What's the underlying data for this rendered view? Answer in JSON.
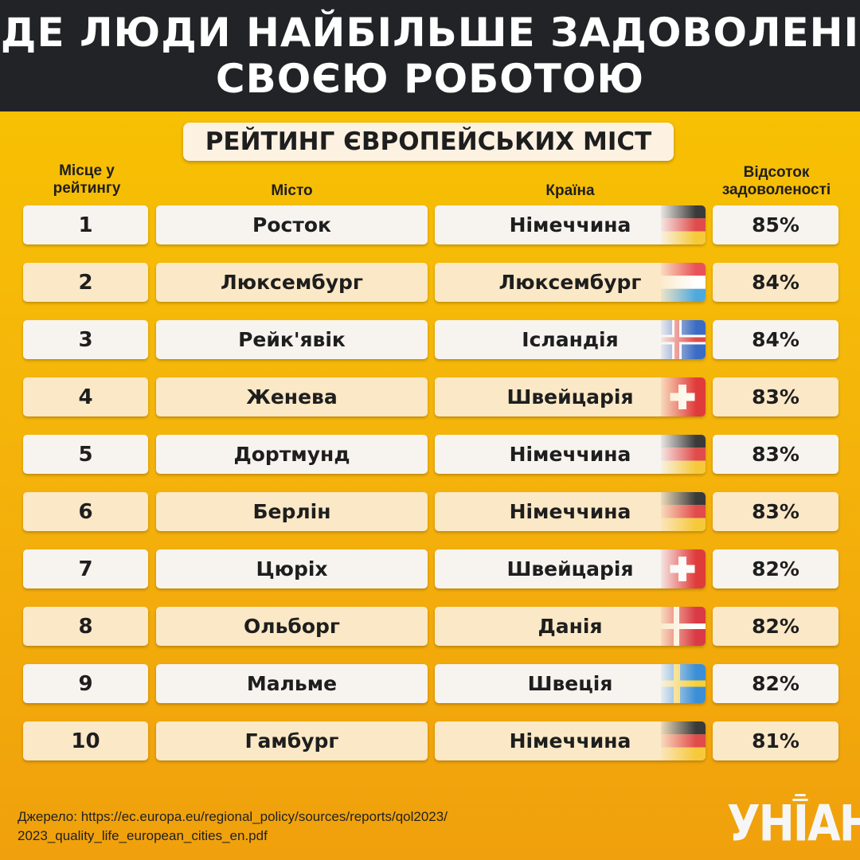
{
  "header": {
    "title_line1": "ДЕ ЛЮДИ НАЙБІЛЬШЕ ЗАДОВОЛЕНІ",
    "title_line2": "СВОЄЮ РОБОТОЮ"
  },
  "subtitle": "РЕЙТИНГ ЄВРОПЕЙСЬКИХ МІСТ",
  "columns": {
    "rank_line1": "Місце у",
    "rank_line2": "рейтингу",
    "city": "Місто",
    "country": "Країна",
    "pct_line1": "Відсоток",
    "pct_line2": "задоволеності"
  },
  "rows": [
    {
      "rank": "1",
      "city": "Росток",
      "country": "Німеччина",
      "pct": "85%",
      "flag": "germany-flag-icon"
    },
    {
      "rank": "2",
      "city": "Люксембург",
      "country": "Люксембург",
      "pct": "84%",
      "flag": "luxembourg-flag-icon"
    },
    {
      "rank": "3",
      "city": "Рейк'явік",
      "country": "Ісландія",
      "pct": "84%",
      "flag": "iceland-flag-icon"
    },
    {
      "rank": "4",
      "city": "Женева",
      "country": "Швейцарія",
      "pct": "83%",
      "flag": "switzerland-flag-icon"
    },
    {
      "rank": "5",
      "city": "Дортмунд",
      "country": "Німеччина",
      "pct": "83%",
      "flag": "germany-flag-icon"
    },
    {
      "rank": "6",
      "city": "Берлін",
      "country": "Німеччина",
      "pct": "83%",
      "flag": "germany-flag-icon"
    },
    {
      "rank": "7",
      "city": "Цюріх",
      "country": "Швейцарія",
      "pct": "82%",
      "flag": "switzerland-flag-icon"
    },
    {
      "rank": "8",
      "city": "Ольборг",
      "country": "Данія",
      "pct": "82%",
      "flag": "denmark-flag-icon"
    },
    {
      "rank": "9",
      "city": "Мальме",
      "country": "Швеція",
      "pct": "82%",
      "flag": "sweden-flag-icon"
    },
    {
      "rank": "10",
      "city": "Гамбург",
      "country": "Німеччина",
      "pct": "81%",
      "flag": "germany-flag-icon"
    }
  ],
  "source": {
    "line1": "Джерело: https://ec.europa.eu/regional_policy/sources/reports/qol2023/",
    "line2": "2023_quality_life_european_cities_en.pdf"
  },
  "logo": "УНІАН",
  "colors": {
    "header_bg": "#222326",
    "background_top": "#f8c400",
    "background_bottom": "#f0a00c",
    "row_light": "#f7f4f0",
    "row_cream": "#fbe8c6"
  }
}
